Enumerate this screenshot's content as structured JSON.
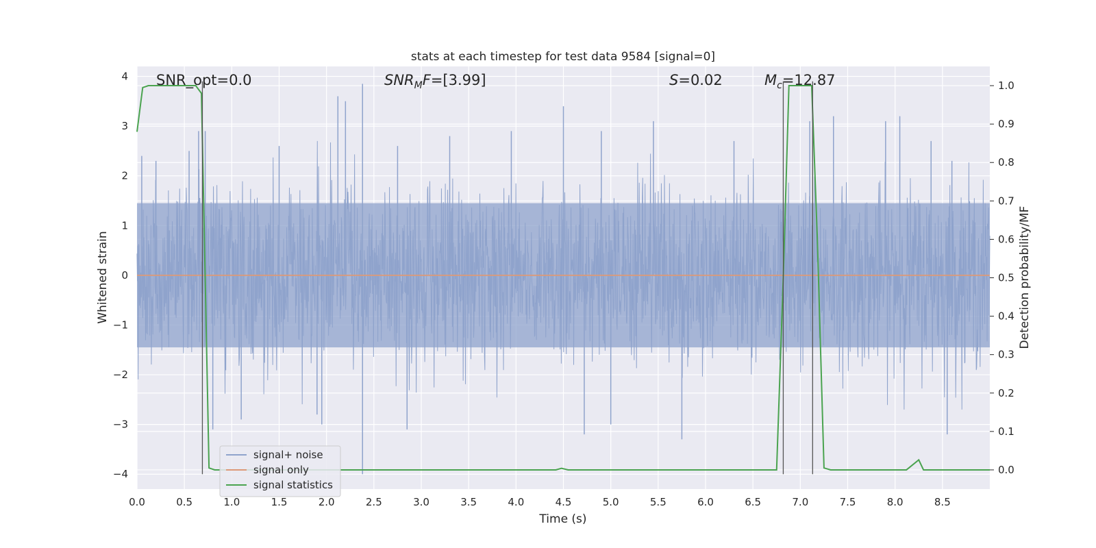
{
  "chart_data": {
    "type": "line",
    "title": "stats at each timestep for test data 9584 [signal=0]",
    "xlabel": "Time (s)",
    "ylabel": "Whitened strain",
    "y2label": "Detection probability/MF",
    "xlim": [
      0,
      9.0
    ],
    "ylim": [
      -4.3,
      4.2
    ],
    "y2lim": [
      -0.05,
      1.05
    ],
    "xticks": [
      "0.0",
      "0.5",
      "1.0",
      "1.5",
      "2.0",
      "2.5",
      "3.0",
      "3.5",
      "4.0",
      "4.5",
      "5.0",
      "5.5",
      "6.0",
      "6.5",
      "7.0",
      "7.5",
      "8.0",
      "8.5"
    ],
    "yticks": [
      "4",
      "3",
      "2",
      "1",
      "0",
      "−1",
      "−2",
      "−3",
      "−4"
    ],
    "y2ticks": [
      "1.0",
      "0.9",
      "0.8",
      "0.7",
      "0.6",
      "0.5",
      "0.4",
      "0.3",
      "0.2",
      "0.1",
      "0.0"
    ],
    "grid": true,
    "legend_position": "lower-left",
    "annotations": {
      "snr_opt": "SNR_opt=0.0",
      "snr_mf": "=[3.99]",
      "s_value": "=0.02",
      "mc_value": "=12.87"
    },
    "series": [
      {
        "name": "signal+ noise",
        "color": "#8fa3cc",
        "note_axis": "left",
        "envelope_typical": 1.45,
        "spikes": [
          {
            "x": 0.05,
            "y": 2.4
          },
          {
            "x": 0.2,
            "y": 2.3
          },
          {
            "x": 0.55,
            "y": 2.5
          },
          {
            "x": 0.65,
            "y": 2.9
          },
          {
            "x": 0.72,
            "y": 2.9
          },
          {
            "x": 0.8,
            "y": -3.1
          },
          {
            "x": 1.1,
            "y": -2.9
          },
          {
            "x": 1.5,
            "y": 2.6
          },
          {
            "x": 1.9,
            "y": -2.8
          },
          {
            "x": 1.95,
            "y": -3.0
          },
          {
            "x": 2.12,
            "y": 3.6
          },
          {
            "x": 2.2,
            "y": 3.5
          },
          {
            "x": 2.38,
            "y": 3.85
          },
          {
            "x": 2.38,
            "y": -4.0
          },
          {
            "x": 2.75,
            "y": 2.6
          },
          {
            "x": 2.85,
            "y": -3.1
          },
          {
            "x": 3.3,
            "y": 2.8
          },
          {
            "x": 3.95,
            "y": 2.9
          },
          {
            "x": 4.5,
            "y": 3.4
          },
          {
            "x": 4.72,
            "y": -3.2
          },
          {
            "x": 4.9,
            "y": 2.9
          },
          {
            "x": 5.0,
            "y": -3.0
          },
          {
            "x": 5.45,
            "y": 3.1
          },
          {
            "x": 5.75,
            "y": -3.3
          },
          {
            "x": 6.3,
            "y": 2.7
          },
          {
            "x": 7.1,
            "y": 3.1
          },
          {
            "x": 7.35,
            "y": 3.2
          },
          {
            "x": 7.9,
            "y": 3.1
          },
          {
            "x": 8.05,
            "y": 3.2
          },
          {
            "x": 8.38,
            "y": 2.7
          },
          {
            "x": 8.55,
            "y": -3.2
          },
          {
            "x": 8.6,
            "y": 2.3
          }
        ]
      },
      {
        "name": "signal only",
        "color": "#dd9977",
        "note_axis": "left",
        "x": [
          0,
          9.0
        ],
        "y": [
          0,
          0
        ]
      },
      {
        "name": "signal statistics",
        "color": "#4aa34f",
        "note_axis": "right",
        "x": [
          0,
          0.06,
          0.12,
          0.62,
          0.68,
          0.76,
          0.82,
          1.0,
          4.42,
          4.48,
          4.55,
          6.75,
          6.82,
          6.88,
          7.12,
          7.18,
          7.25,
          7.32,
          8.12,
          8.25,
          8.3,
          9.0
        ],
        "y": [
          0.88,
          0.995,
          1.0,
          1.0,
          0.98,
          0.005,
          0.0,
          0.0,
          0.0,
          0.004,
          0.0,
          0.0,
          0.5,
          1.0,
          1.0,
          0.6,
          0.005,
          0.0,
          0.0,
          0.026,
          0.0,
          0.0
        ]
      }
    ],
    "vertical_lines": {
      "color": "#555555",
      "x": [
        0.69,
        6.82,
        7.13
      ]
    }
  }
}
